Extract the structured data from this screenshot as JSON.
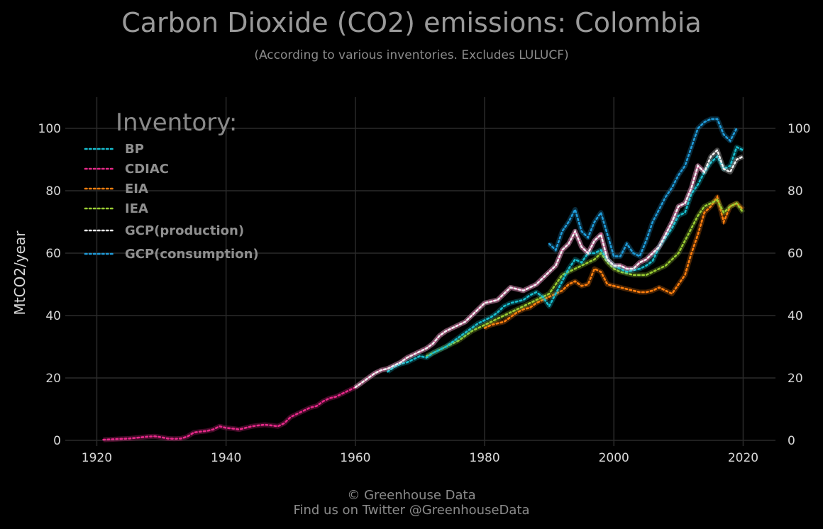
{
  "title": "Carbon Dioxide (CO2) emissions: Colombia",
  "subtitle": "(According to various inventories. Excludes LULUCF)",
  "credit_line1": "© Greenhouse Data",
  "credit_line2": "Find us on Twitter @GreenhouseData",
  "colors": {
    "background": "#000000",
    "grid": "#2a2a2a",
    "BP": "#17becf",
    "CDIAC": "#e7298a",
    "EIA": "#ff7f0e",
    "IEA": "#9acd32",
    "GCP(production)": "#f0f0f0",
    "GCP(consumption)": "#1f9bd9"
  },
  "chart_data": {
    "type": "line",
    "title": "Carbon Dioxide (CO2) emissions: Colombia",
    "subtitle": "(According to various inventories. Excludes LULUCF)",
    "xlabel": "",
    "ylabel": "MtCO2/year",
    "xlim": [
      1916,
      2025
    ],
    "ylim": [
      0,
      110
    ],
    "xticks": [
      "1920",
      "1940",
      "1960",
      "1980",
      "2000",
      "2020"
    ],
    "yticks": [
      "0",
      "20",
      "40",
      "60",
      "80",
      "100"
    ],
    "grid": true,
    "line_style": "dotted",
    "legend_title": "Inventory:",
    "legend_position": "top-left",
    "series": [
      {
        "name": "BP",
        "x": [
          1965,
          1966,
          1967,
          1968,
          1969,
          1970,
          1971,
          1972,
          1973,
          1974,
          1975,
          1976,
          1977,
          1978,
          1979,
          1980,
          1981,
          1982,
          1983,
          1984,
          1985,
          1986,
          1987,
          1988,
          1989,
          1990,
          1991,
          1992,
          1993,
          1994,
          1995,
          1996,
          1997,
          1998,
          1999,
          2000,
          2001,
          2002,
          2003,
          2004,
          2005,
          2006,
          2007,
          2008,
          2009,
          2010,
          2011,
          2012,
          2013,
          2014,
          2015,
          2016,
          2017,
          2018,
          2019,
          2020
        ],
        "y": [
          22,
          23.5,
          24.5,
          25,
          26,
          27,
          26.5,
          28,
          29,
          30,
          31.5,
          33,
          34.5,
          36,
          37.5,
          38.5,
          39.5,
          41,
          43,
          44,
          44.5,
          45,
          46.5,
          47.5,
          46,
          43,
          47,
          51,
          55,
          58,
          57,
          60,
          60,
          61,
          58,
          56,
          55,
          54,
          54.5,
          55,
          56,
          57.5,
          62,
          65,
          68,
          72,
          73,
          79,
          82,
          86,
          89,
          91,
          87,
          88,
          94,
          93
        ]
      },
      {
        "name": "CDIAC",
        "x": [
          1921,
          1922,
          1923,
          1924,
          1925,
          1926,
          1927,
          1928,
          1929,
          1930,
          1931,
          1932,
          1933,
          1934,
          1935,
          1936,
          1937,
          1938,
          1939,
          1940,
          1941,
          1942,
          1943,
          1944,
          1945,
          1946,
          1947,
          1948,
          1949,
          1950,
          1951,
          1952,
          1953,
          1954,
          1955,
          1956,
          1957,
          1958,
          1959,
          1960,
          1961,
          1962,
          1963,
          1964,
          1965,
          1966,
          1967,
          1968,
          1969,
          1970,
          1971,
          1972,
          1973,
          1974,
          1975,
          1976,
          1977,
          1978,
          1979,
          1980,
          1981,
          1982,
          1983,
          1984,
          1985,
          1986,
          1987,
          1988,
          1989,
          1990,
          1991,
          1992,
          1993,
          1994,
          1995,
          1996,
          1997,
          1998,
          1999,
          2000,
          2001,
          2002,
          2003,
          2004,
          2005,
          2006,
          2007,
          2008,
          2009,
          2010,
          2011,
          2012,
          2013,
          2014
        ],
        "y": [
          0.2,
          0.3,
          0.4,
          0.5,
          0.6,
          0.8,
          1.0,
          1.2,
          1.3,
          1.0,
          0.6,
          0.5,
          0.6,
          1.2,
          2.5,
          2.8,
          3.0,
          3.5,
          4.5,
          4.0,
          3.8,
          3.5,
          4.0,
          4.5,
          4.8,
          5.0,
          4.8,
          4.5,
          5.5,
          7.5,
          8.5,
          9.5,
          10.5,
          11,
          12.5,
          13.5,
          14,
          15,
          16,
          17,
          18.5,
          20,
          21.5,
          22.5,
          23,
          24,
          25,
          26.5,
          27.5,
          28.5,
          29.5,
          31,
          33.5,
          35,
          36,
          37,
          38,
          40,
          42,
          44,
          44.5,
          45,
          47,
          49,
          48.5,
          48,
          49,
          50,
          52,
          54,
          56,
          61,
          63,
          67,
          62,
          60,
          64,
          66,
          58,
          56,
          56,
          55,
          55,
          57,
          58,
          60,
          62,
          66,
          70,
          75,
          76,
          81,
          88,
          86
        ]
      },
      {
        "name": "EIA",
        "x": [
          1980,
          1981,
          1982,
          1983,
          1984,
          1985,
          1986,
          1987,
          1988,
          1989,
          1990,
          1991,
          1992,
          1993,
          1994,
          1995,
          1996,
          1997,
          1998,
          1999,
          2000,
          2001,
          2002,
          2003,
          2004,
          2005,
          2006,
          2007,
          2008,
          2009,
          2010,
          2011,
          2012,
          2013,
          2014,
          2015,
          2016,
          2017,
          2018,
          2019,
          2020
        ],
        "y": [
          36,
          37,
          37.5,
          38,
          39.5,
          41,
          42,
          42.5,
          44,
          45,
          46,
          47,
          48,
          50,
          51,
          49.5,
          50,
          55,
          54,
          50,
          49.5,
          49,
          48.5,
          48,
          47.5,
          47.5,
          48,
          49,
          48,
          47,
          50,
          53,
          60,
          66,
          73,
          75,
          78,
          70,
          75,
          76,
          74
        ]
      },
      {
        "name": "IEA",
        "x": [
          1971,
          1972,
          1973,
          1974,
          1975,
          1976,
          1977,
          1978,
          1979,
          1980,
          1981,
          1982,
          1983,
          1984,
          1985,
          1986,
          1987,
          1988,
          1989,
          1990,
          1991,
          1992,
          1993,
          1994,
          1995,
          1996,
          1997,
          1998,
          1999,
          2000,
          2001,
          2002,
          2003,
          2004,
          2005,
          2006,
          2007,
          2008,
          2009,
          2010,
          2011,
          2012,
          2013,
          2014,
          2015,
          2016,
          2017,
          2018,
          2019,
          2020
        ],
        "y": [
          27,
          28,
          29,
          30,
          31,
          32,
          33.5,
          35,
          36,
          37,
          38,
          39,
          40,
          41,
          42,
          43,
          44,
          45,
          46,
          47,
          50,
          53,
          54,
          55,
          56,
          57,
          58,
          60,
          57,
          55,
          54,
          53.5,
          53,
          53,
          53,
          54,
          55,
          56,
          58,
          60,
          64,
          68,
          72,
          75,
          76,
          77,
          73,
          75,
          76,
          73
        ]
      },
      {
        "name": "GCP(production)",
        "x": [
          1960,
          1961,
          1962,
          1963,
          1964,
          1965,
          1966,
          1967,
          1968,
          1969,
          1970,
          1971,
          1972,
          1973,
          1974,
          1975,
          1976,
          1977,
          1978,
          1979,
          1980,
          1981,
          1982,
          1983,
          1984,
          1985,
          1986,
          1987,
          1988,
          1989,
          1990,
          1991,
          1992,
          1993,
          1994,
          1995,
          1996,
          1997,
          1998,
          1999,
          2000,
          2001,
          2002,
          2003,
          2004,
          2005,
          2006,
          2007,
          2008,
          2009,
          2010,
          2011,
          2012,
          2013,
          2014,
          2015,
          2016,
          2017,
          2018,
          2019,
          2020
        ],
        "y": [
          17,
          18.5,
          20,
          21.5,
          22.5,
          23,
          24,
          25,
          26.5,
          27.5,
          28.5,
          29.5,
          31,
          33.5,
          35,
          36,
          37,
          38,
          40,
          42,
          44,
          44.5,
          45,
          47,
          49,
          48.5,
          48,
          49,
          50,
          52,
          54,
          56,
          61,
          63,
          67,
          62,
          60,
          64,
          66,
          58,
          56,
          56,
          55,
          55,
          57,
          58,
          60,
          62,
          66,
          70,
          75,
          76,
          81,
          88,
          86,
          91,
          93,
          87,
          86,
          90,
          91
        ]
      },
      {
        "name": "GCP(consumption)",
        "x": [
          1990,
          1991,
          1992,
          1993,
          1994,
          1995,
          1996,
          1997,
          1998,
          1999,
          2000,
          2001,
          2002,
          2003,
          2004,
          2005,
          2006,
          2007,
          2008,
          2009,
          2010,
          2011,
          2012,
          2013,
          2014,
          2015,
          2016,
          2017,
          2018,
          2019
        ],
        "y": [
          63,
          61,
          67,
          70,
          74,
          67,
          65,
          70,
          73,
          66,
          59,
          59,
          63,
          60,
          59,
          64,
          70,
          74,
          78,
          81,
          85,
          88,
          94,
          100,
          102,
          103,
          103,
          98,
          96,
          100
        ]
      }
    ]
  }
}
